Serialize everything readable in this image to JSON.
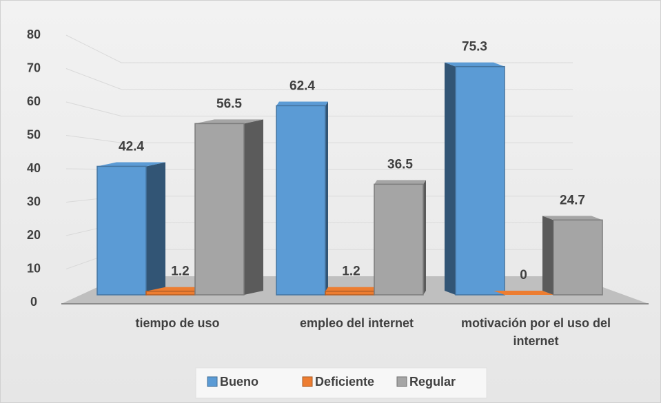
{
  "chart_data": {
    "type": "bar3d",
    "categories": [
      "tiempo de uso",
      "empleo del internet",
      "motivación por el uso del internet"
    ],
    "series": [
      {
        "name": "Bueno",
        "color": "#5b9bd5",
        "values": [
          42.4,
          62.4,
          75.3
        ]
      },
      {
        "name": "Deficiente",
        "color": "#ed7d31",
        "values": [
          1.2,
          1.2,
          0
        ]
      },
      {
        "name": "Regular",
        "color": "#a5a5a5",
        "values": [
          56.5,
          36.5,
          24.7
        ]
      }
    ],
    "ylim": [
      0,
      80
    ],
    "yticks": [
      0,
      10,
      20,
      30,
      40,
      50,
      60,
      70,
      80
    ],
    "grid": true,
    "legend": "bottom"
  }
}
